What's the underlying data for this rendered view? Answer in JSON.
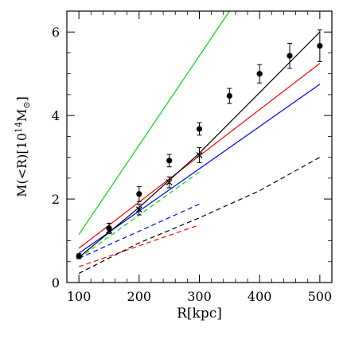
{
  "chart_data": {
    "type": "line",
    "xlabel": "R[kpc]",
    "ylabel": {
      "pre": "M(<R)[10",
      "exp": "14",
      "mid": "M",
      "sub": "⊙",
      "post": "]"
    },
    "xlim": [
      80,
      520
    ],
    "ylim": [
      0,
      6.5
    ],
    "xticks_major": [
      100,
      200,
      300,
      400,
      500
    ],
    "xtick_labels": [
      "100",
      "200",
      "300",
      "400",
      "500"
    ],
    "yticks_major": [
      0,
      2,
      4,
      6
    ],
    "ytick_labels": [
      "0",
      "2",
      "4",
      "6"
    ],
    "minor_x_step": 20,
    "minor_y_step": 0.5,
    "grid": false,
    "legend": "none",
    "series": [
      {
        "kind": "solid",
        "color": "#00dd00",
        "x": [
          100,
          350
        ],
        "y": [
          1.15,
          6.5
        ]
      },
      {
        "kind": "solid",
        "color": "#ff0000",
        "x": [
          100,
          500
        ],
        "y": [
          0.82,
          5.25
        ]
      },
      {
        "kind": "solid",
        "color": "#0000ff",
        "x": [
          100,
          500
        ],
        "y": [
          0.7,
          4.75
        ]
      },
      {
        "kind": "solid",
        "color": "#000000",
        "x": [
          100,
          200,
          300,
          400,
          500
        ],
        "y": [
          0.6,
          1.8,
          3.1,
          4.55,
          6.0
        ]
      },
      {
        "kind": "dashed",
        "color": "#00dd00",
        "x": [
          100,
          300
        ],
        "y": [
          0.58,
          2.65
        ]
      },
      {
        "kind": "dashed",
        "color": "#0000ff",
        "x": [
          100,
          300
        ],
        "y": [
          0.58,
          1.88
        ]
      },
      {
        "kind": "dashed",
        "color": "#ff0000",
        "x": [
          100,
          300
        ],
        "y": [
          0.38,
          1.38
        ]
      },
      {
        "kind": "dashed",
        "color": "#000000",
        "x": [
          100,
          200,
          300,
          400,
          500
        ],
        "y": [
          0.22,
          0.95,
          1.55,
          2.2,
          3.0
        ]
      }
    ],
    "points_dots": {
      "x": [
        100,
        150,
        200,
        250,
        300,
        350,
        400,
        450,
        500
      ],
      "y": [
        0.63,
        1.3,
        2.12,
        2.92,
        3.68,
        4.47,
        5.0,
        5.43,
        5.67
      ],
      "err": [
        0.06,
        0.12,
        0.18,
        0.15,
        0.15,
        0.18,
        0.22,
        0.3,
        0.38
      ]
    },
    "points_crosses": {
      "x": [
        150,
        200,
        250,
        300
      ],
      "y": [
        1.25,
        1.75,
        2.4,
        3.05
      ],
      "err": [
        0.08,
        0.13,
        0.13,
        0.18
      ]
    }
  }
}
